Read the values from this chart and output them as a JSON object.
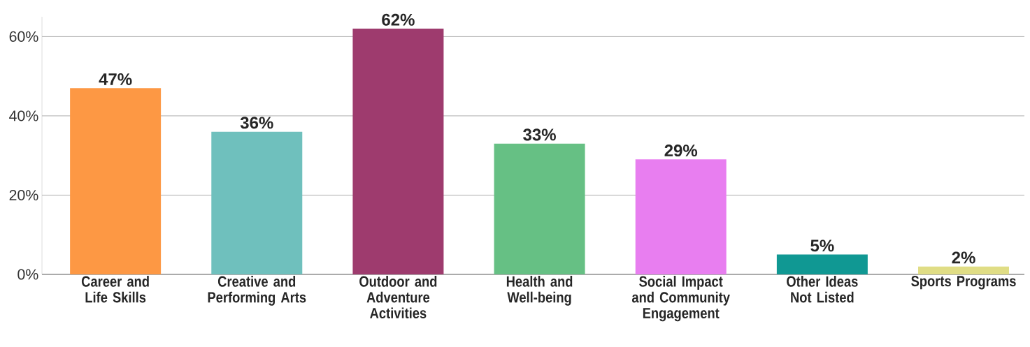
{
  "chart_data": {
    "type": "bar",
    "categories": [
      "Career and Life Skills",
      "Creative and Performing Arts",
      "Outdoor and Adventure Activities",
      "Health and Well-being",
      "Social Impact and Community Engagement",
      "Other Ideas Not Listed",
      "Sports Programs"
    ],
    "values": [
      47,
      36,
      62,
      33,
      29,
      5,
      2
    ],
    "value_labels": [
      "47%",
      "36%",
      "62%",
      "33%",
      "29%",
      "5%",
      "2%"
    ],
    "colors": [
      "#fd9844",
      "#6fc0bd",
      "#9e3b6e",
      "#66c084",
      "#e87ef0",
      "#109893",
      "#e0dd85"
    ],
    "ylim": [
      0,
      65
    ],
    "yticks": [
      {
        "value": 0,
        "label": "0%"
      },
      {
        "value": 20,
        "label": "20%"
      },
      {
        "value": 40,
        "label": "40%"
      },
      {
        "value": 60,
        "label": "60%"
      }
    ],
    "grid": "y"
  }
}
